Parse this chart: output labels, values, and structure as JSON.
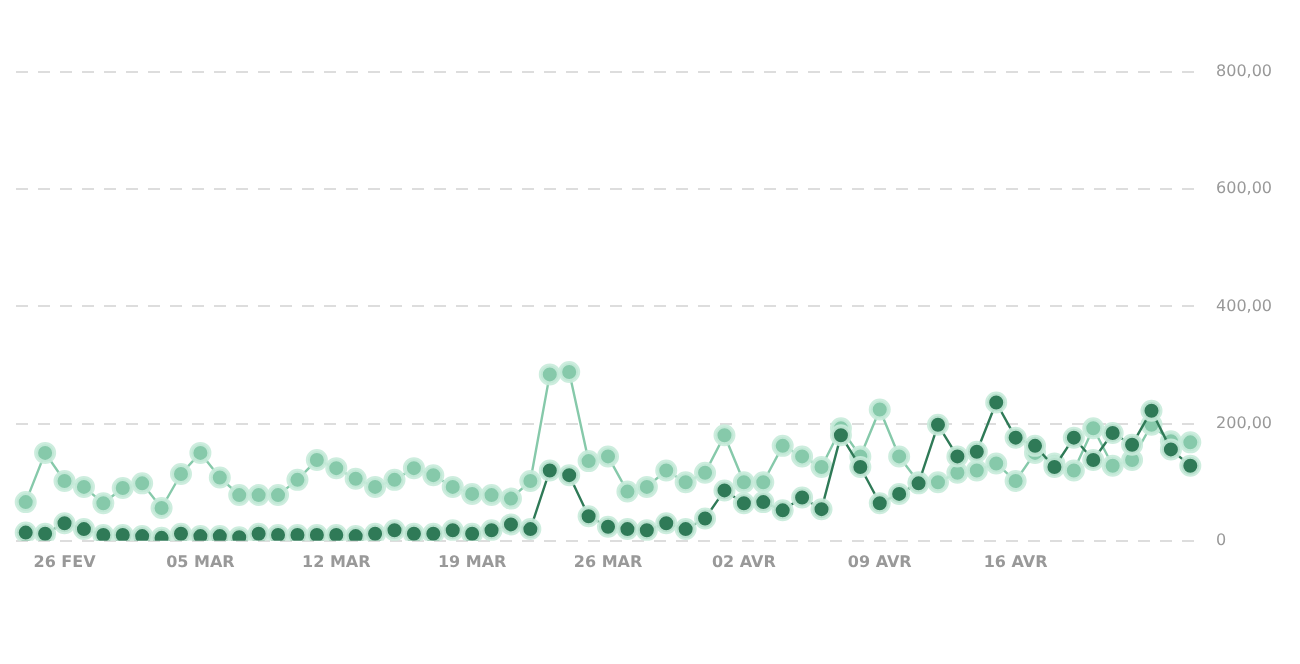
{
  "chart_data": {
    "type": "line",
    "categories": [
      null,
      null,
      "26 FEV",
      null,
      null,
      null,
      null,
      null,
      null,
      "05 MAR",
      null,
      null,
      null,
      null,
      null,
      null,
      "12 MAR",
      null,
      null,
      null,
      null,
      null,
      null,
      "19 MAR",
      null,
      null,
      null,
      null,
      null,
      null,
      "26 MAR",
      null,
      null,
      null,
      null,
      null,
      null,
      "02 AVR",
      null,
      null,
      null,
      null,
      null,
      null,
      "09 AVR",
      null,
      null,
      null,
      null,
      null,
      null,
      "16 AVR",
      null,
      null,
      null,
      null,
      null,
      null,
      null,
      null,
      null
    ],
    "series": [
      {
        "color": "#86c9aa",
        "values": [
          66,
          150,
          102,
          92,
          64,
          90,
          98,
          56,
          114,
          150,
          108,
          78,
          78,
          78,
          104,
          138,
          124,
          106,
          92,
          104,
          124,
          112,
          92,
          80,
          78,
          72,
          102,
          284,
          288,
          136,
          144,
          84,
          92,
          120,
          100,
          116,
          180,
          100,
          100,
          162,
          144,
          126,
          192,
          144,
          224,
          144,
          100,
          100,
          116,
          120,
          132,
          102,
          150,
          132,
          120,
          192,
          128,
          138,
          198,
          170,
          168
        ]
      },
      {
        "color": "#2f7a57",
        "values": [
          14,
          12,
          30,
          20,
          10,
          10,
          8,
          5,
          12,
          8,
          8,
          6,
          12,
          10,
          10,
          10,
          10,
          8,
          12,
          18,
          12,
          12,
          18,
          12,
          18,
          28,
          20,
          120,
          112,
          42,
          24,
          20,
          18,
          30,
          20,
          38,
          86,
          64,
          66,
          52,
          74,
          54,
          180,
          126,
          64,
          80,
          98,
          198,
          144,
          152,
          236,
          176,
          162,
          126,
          176,
          138,
          184,
          164,
          222,
          156,
          128
        ]
      }
    ],
    "ylim": [
      0,
      800
    ],
    "yticks": [
      {
        "value": 0,
        "label": "0"
      },
      {
        "value": 200,
        "label": "200,00"
      },
      {
        "value": 400,
        "label": "400,00"
      },
      {
        "value": 600,
        "label": "600,00"
      },
      {
        "value": 800,
        "label": "800,00"
      }
    ],
    "grid": "y",
    "legend": false,
    "marker": "circle",
    "line_style": "solid"
  }
}
